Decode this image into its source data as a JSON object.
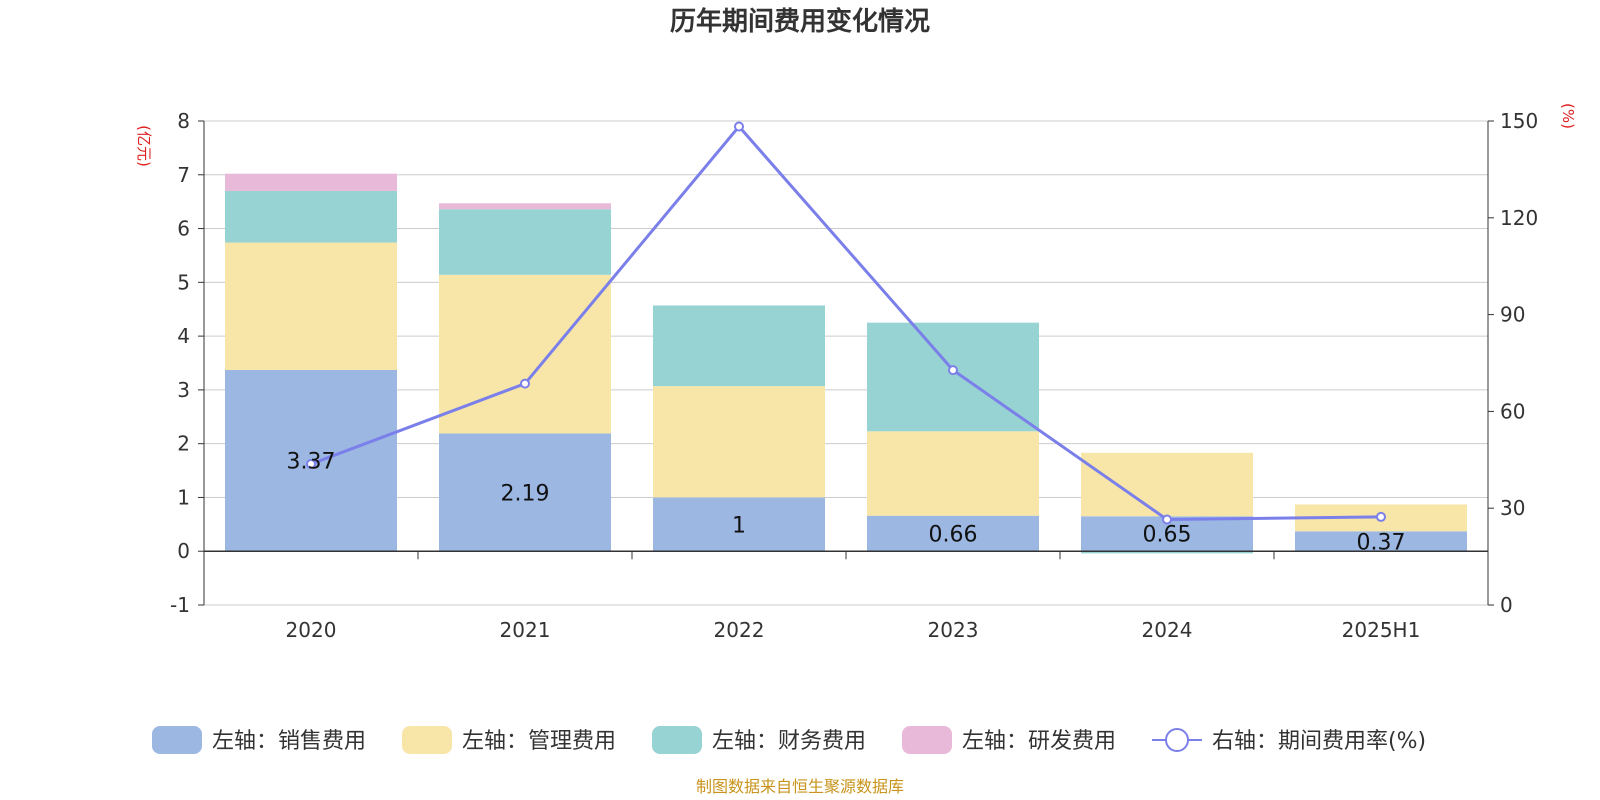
{
  "chart_data": {
    "type": "bar",
    "title": "历年期间费用变化情况",
    "categories": [
      "2020",
      "2021",
      "2022",
      "2023",
      "2024",
      "2025H1"
    ],
    "left_axis": {
      "unit": "(亿元)",
      "ylim": [
        -1,
        8
      ],
      "ticks": [
        "-1",
        "0",
        "1",
        "2",
        "3",
        "4",
        "5",
        "6",
        "7",
        "8"
      ]
    },
    "right_axis": {
      "unit": "(%)",
      "ylim": [
        0,
        150
      ],
      "ticks": [
        "0",
        "30",
        "60",
        "90",
        "120",
        "150"
      ]
    },
    "series": [
      {
        "name": "左轴：销售费用",
        "type": "bar",
        "axis": "left",
        "color": "#9bb7e2",
        "values": [
          3.37,
          2.19,
          1,
          0.66,
          0.65,
          0.37
        ],
        "labels": [
          "3.37",
          "2.19",
          "1",
          "0.66",
          "0.65",
          "0.37"
        ]
      },
      {
        "name": "左轴：管理费用",
        "type": "bar",
        "axis": "left",
        "color": "#f8e6a8",
        "values": [
          2.37,
          2.95,
          2.07,
          1.57,
          1.18,
          0.5
        ]
      },
      {
        "name": "左轴：财务费用",
        "type": "bar",
        "axis": "left",
        "color": "#97d3d3",
        "values": [
          0.96,
          1.22,
          1.5,
          2.02,
          -0.04,
          0
        ]
      },
      {
        "name": "左轴：研发费用",
        "type": "bar",
        "axis": "left",
        "color": "#e8b9d8",
        "values": [
          0.32,
          0.11,
          0,
          0,
          0,
          0
        ]
      },
      {
        "name": "右轴：期间费用率(%)",
        "type": "line",
        "axis": "right",
        "color": "#7b7fea",
        "values": [
          43.7,
          68.6,
          148.3,
          72.8,
          26.5,
          27.3
        ]
      }
    ],
    "grid": true,
    "legend_position": "bottom"
  },
  "source": "制图数据来自恒生聚源数据库"
}
